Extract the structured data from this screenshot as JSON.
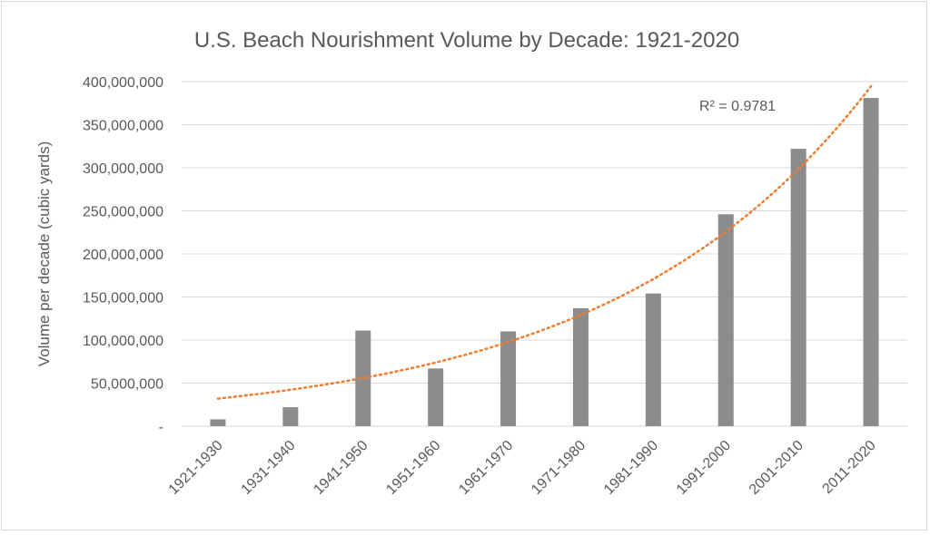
{
  "chart_data": {
    "type": "bar",
    "title": "U.S. Beach Nourishment Volume by Decade: 1921-2020",
    "xlabel": "",
    "ylabel": "Volume per decade (cubic yards)",
    "categories": [
      "1921-1930",
      "1931-1940",
      "1941-1950",
      "1951-1960",
      "1961-1970",
      "1971-1980",
      "1981-1990",
      "1991-2000",
      "2001-2010",
      "2011-2020"
    ],
    "values": [
      8000000,
      22000000,
      111000000,
      67000000,
      110000000,
      137000000,
      154000000,
      246000000,
      322000000,
      381000000
    ],
    "ylim": [
      0,
      400000000
    ],
    "ytick_labels": [
      "-",
      "50,000,000",
      "100,000,000",
      "150,000,000",
      "200,000,000",
      "250,000,000",
      "300,000,000",
      "350,000,000",
      "400,000,000"
    ],
    "grid": true,
    "bar_color": "#8c8c8c",
    "trendline": {
      "type": "exponential",
      "color": "#ed7d31",
      "style": "dotted",
      "r_squared_label": "R² = 0.9781",
      "start_value": 32000000,
      "growth_per_category": 1.322
    }
  }
}
